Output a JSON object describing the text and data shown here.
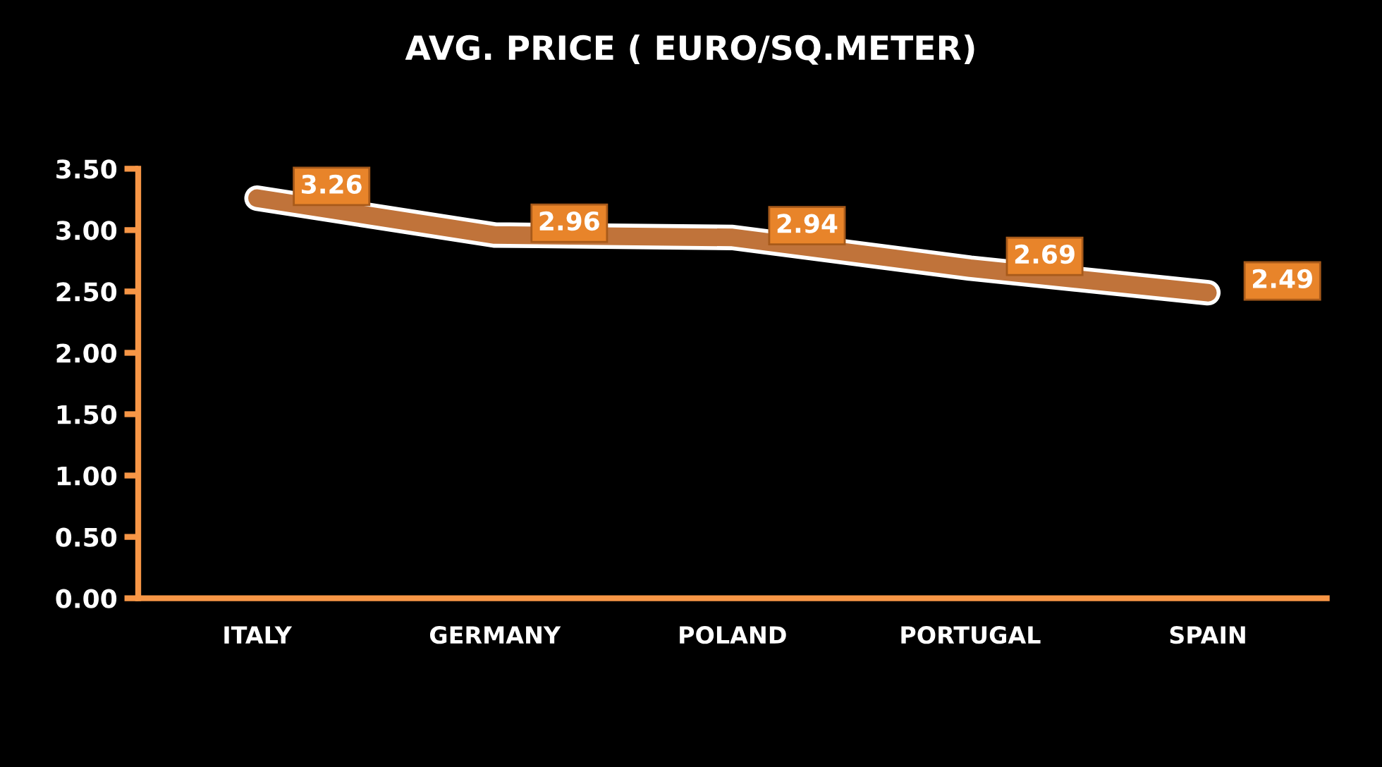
{
  "chart_data": {
    "type": "line",
    "title": "AVG. PRICE ( EURO/SQ.METER)",
    "categories": [
      "ITALY",
      "GERMANY",
      "POLAND",
      "PORTUGAL",
      "SPAIN"
    ],
    "series": [
      {
        "color": "#c0733a",
        "values": [
          3.26,
          2.96,
          2.94,
          2.69,
          2.49
        ]
      }
    ],
    "ylim": [
      0,
      3.5
    ],
    "yticks": [
      {
        "value": 0,
        "label": "0.00"
      },
      {
        "value": 0.5,
        "label": "0.50"
      },
      {
        "value": 1,
        "label": "1.00"
      },
      {
        "value": 1.5,
        "label": "1.50"
      },
      {
        "value": 2,
        "label": "2.00"
      },
      {
        "value": 2.5,
        "label": "2.50"
      },
      {
        "value": 3,
        "label": "3.00"
      },
      {
        "value": 3.5,
        "label": "3.50"
      }
    ],
    "data_labels": true,
    "line_style": "solid"
  }
}
